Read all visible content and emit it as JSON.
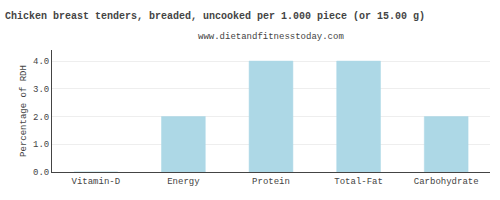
{
  "chart_data": {
    "type": "bar",
    "title": "Chicken breast tenders, breaded, uncooked per 1.000 piece (or 15.00 g)",
    "subtitle": "www.dietandfitnesstoday.com",
    "categories": [
      "Vitamin-D",
      "Energy",
      "Protein",
      "Total-Fat",
      "Carbohydrate"
    ],
    "values": [
      0.0,
      2.0,
      4.0,
      4.0,
      2.0
    ],
    "color": "#add8e6",
    "ylabel": "Percentage of RDH",
    "ylim": [
      0,
      4.4
    ],
    "yticks": [
      {
        "value": 0.0,
        "label": "0.0"
      },
      {
        "value": 1.0,
        "label": "1.0"
      },
      {
        "value": 2.0,
        "label": "2.0"
      },
      {
        "value": 3.0,
        "label": "3.0"
      },
      {
        "value": 4.0,
        "label": "4.0"
      }
    ],
    "grid": true
  }
}
